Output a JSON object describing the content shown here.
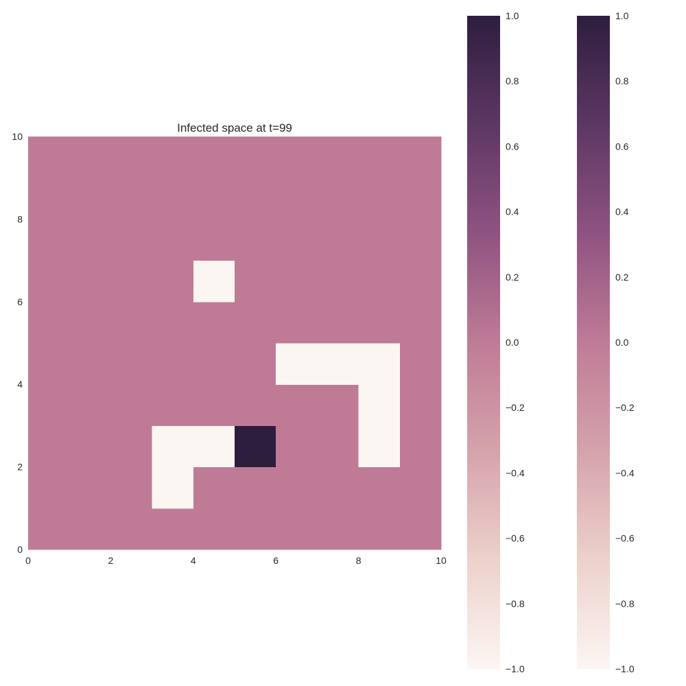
{
  "chart_data": {
    "type": "heatmap",
    "title": "Infected space at t=99",
    "xlabel": "",
    "ylabel": "",
    "xlim": [
      0,
      10
    ],
    "ylim": [
      0,
      10
    ],
    "x_ticks": [
      "0",
      "2",
      "4",
      "6",
      "8",
      "10"
    ],
    "y_ticks": [
      "0",
      "2",
      "4",
      "6",
      "8",
      "10"
    ],
    "grid": false,
    "value_range": [
      -1.0,
      1.0
    ],
    "default_value": 0.0,
    "cells": [
      {
        "x": 4,
        "y": 6,
        "value": -1.0
      },
      {
        "x": 6,
        "y": 4,
        "value": -1.0
      },
      {
        "x": 7,
        "y": 4,
        "value": -1.0
      },
      {
        "x": 8,
        "y": 4,
        "value": -1.0
      },
      {
        "x": 8,
        "y": 3,
        "value": -1.0
      },
      {
        "x": 8,
        "y": 2,
        "value": -1.0
      },
      {
        "x": 3,
        "y": 2,
        "value": -1.0
      },
      {
        "x": 4,
        "y": 2,
        "value": -1.0
      },
      {
        "x": 3,
        "y": 1,
        "value": -1.0
      },
      {
        "x": 5,
        "y": 2,
        "value": 1.0
      }
    ],
    "colorbars": [
      {
        "ticks": [
          "1.0",
          "0.8",
          "0.6",
          "0.4",
          "0.2",
          "0.0",
          "−0.2",
          "−0.4",
          "−0.6",
          "−0.8",
          "−1.0"
        ]
      },
      {
        "ticks": [
          "1.0",
          "0.8",
          "0.6",
          "0.4",
          "0.2",
          "0.0",
          "−0.2",
          "−0.4",
          "−0.6",
          "−0.8",
          "−1.0"
        ]
      }
    ],
    "colormap": [
      "#fcf6f3",
      "#edd1cb",
      "#d5a3ab",
      "#bf7b96",
      "#8f5381",
      "#5d3764",
      "#2d1e3e"
    ]
  }
}
